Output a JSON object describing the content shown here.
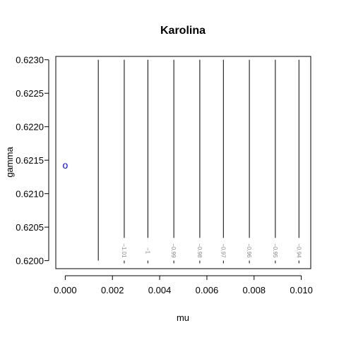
{
  "chart_data": {
    "type": "contour",
    "title": "Karolina",
    "xlabel": "mu",
    "ylabel": "gamma",
    "xlim": [
      -0.0004,
      0.0104
    ],
    "ylim": [
      0.61988,
      0.62305
    ],
    "x_ticks": [
      0.0,
      0.002,
      0.004,
      0.006,
      0.008,
      0.01
    ],
    "x_tick_labels": [
      "0.000",
      "0.002",
      "0.004",
      "0.006",
      "0.008",
      "0.010"
    ],
    "y_ticks": [
      0.62,
      0.6205,
      0.621,
      0.6215,
      0.622,
      0.6225,
      0.623
    ],
    "y_tick_labels": [
      "0.6200",
      "0.6205",
      "0.6210",
      "0.6215",
      "0.6220",
      "0.6225",
      "0.6230"
    ],
    "contour_y_range": [
      0.62,
      0.623
    ],
    "contours": [
      {
        "x": 0.0014,
        "label": ""
      },
      {
        "x": 0.0025,
        "label": "−1.01"
      },
      {
        "x": 0.0035,
        "label": "−1"
      },
      {
        "x": 0.0046,
        "label": "−0.99"
      },
      {
        "x": 0.0057,
        "label": "−0.98"
      },
      {
        "x": 0.0067,
        "label": "−0.97"
      },
      {
        "x": 0.0078,
        "label": "−0.96"
      },
      {
        "x": 0.0089,
        "label": "−0.95"
      },
      {
        "x": 0.0099,
        "label": "−0.94"
      }
    ],
    "contour_label_y": 0.62015,
    "point": {
      "x": 0.0,
      "y": 0.62143,
      "marker": "o",
      "color": "#0000ff"
    },
    "grid": false
  }
}
